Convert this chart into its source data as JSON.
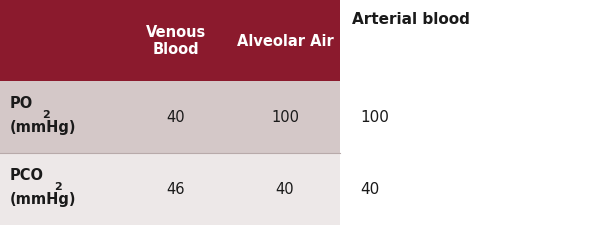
{
  "header_bg_color": "#8B1A2D",
  "header_text_color": "#FFFFFF",
  "row1_bg_color": "#D4C8C8",
  "row2_bg_color": "#EDE8E8",
  "text_color": "#1a1a1a",
  "side_header": "Arterial blood",
  "col_headers": [
    "Venous\nBlood",
    "Alveolar Air"
  ],
  "rows": [
    {
      "label_main": "PO",
      "label_sub": "2",
      "label2": "(mmHg)",
      "v1": "40",
      "v2": "100",
      "side": "100"
    },
    {
      "label_main": "PCO",
      "label_sub": "2",
      "label2": "(mmHg)",
      "v1": "46",
      "v2": "40",
      "side": "40"
    }
  ],
  "fig_width": 5.98,
  "fig_height": 2.26,
  "font_size_header": 10.5,
  "font_size_body": 10.5,
  "font_size_side": 11,
  "font_size_sub": 8
}
